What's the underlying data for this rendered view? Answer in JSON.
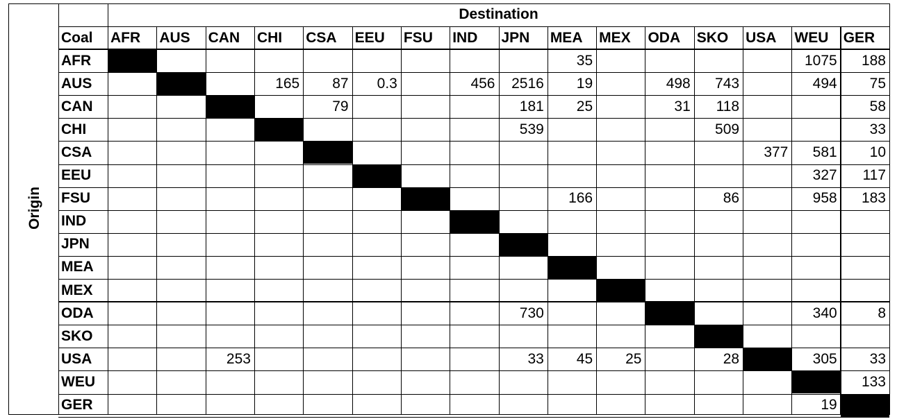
{
  "table": {
    "destination_title": "Destination",
    "origin_title": "Origin",
    "corner_label": "Coal",
    "columns": [
      "AFR",
      "AUS",
      "CAN",
      "CHI",
      "CSA",
      "EEU",
      "FSU",
      "IND",
      "JPN",
      "MEA",
      "MEX",
      "ODA",
      "SKO",
      "USA",
      "WEU",
      "GER"
    ],
    "rows": [
      {
        "label": "AFR",
        "values": [
          "",
          "",
          "",
          "",
          "",
          "",
          "",
          "",
          "",
          "35",
          "",
          "",
          "",
          "",
          "1075",
          "188"
        ]
      },
      {
        "label": "AUS",
        "values": [
          "",
          "",
          "",
          "165",
          "87",
          "0.3",
          "",
          "456",
          "2516",
          "19",
          "",
          "498",
          "743",
          "",
          "494",
          "75"
        ]
      },
      {
        "label": "CAN",
        "values": [
          "",
          "",
          "",
          "",
          "79",
          "",
          "",
          "",
          "181",
          "25",
          "",
          "31",
          "118",
          "",
          "",
          "58"
        ]
      },
      {
        "label": "CHI",
        "values": [
          "",
          "",
          "",
          "",
          "",
          "",
          "",
          "",
          "539",
          "",
          "",
          "",
          "509",
          "",
          "",
          "33"
        ]
      },
      {
        "label": "CSA",
        "values": [
          "",
          "",
          "",
          "",
          "",
          "",
          "",
          "",
          "",
          "",
          "",
          "",
          "",
          "377",
          "581",
          "10"
        ]
      },
      {
        "label": "EEU",
        "values": [
          "",
          "",
          "",
          "",
          "",
          "",
          "",
          "",
          "",
          "",
          "",
          "",
          "",
          "",
          "327",
          "117"
        ]
      },
      {
        "label": "FSU",
        "values": [
          "",
          "",
          "",
          "",
          "",
          "",
          "",
          "",
          "",
          "166",
          "",
          "",
          "86",
          "",
          "958",
          "183"
        ]
      },
      {
        "label": "IND",
        "values": [
          "",
          "",
          "",
          "",
          "",
          "",
          "",
          "",
          "",
          "",
          "",
          "",
          "",
          "",
          "",
          ""
        ]
      },
      {
        "label": "JPN",
        "values": [
          "",
          "",
          "",
          "",
          "",
          "",
          "",
          "",
          "",
          "",
          "",
          "",
          "",
          "",
          "",
          ""
        ]
      },
      {
        "label": "MEA",
        "values": [
          "",
          "",
          "",
          "",
          "",
          "",
          "",
          "",
          "",
          "",
          "",
          "",
          "",
          "",
          "",
          ""
        ]
      },
      {
        "label": "MEX",
        "values": [
          "",
          "",
          "",
          "",
          "",
          "",
          "",
          "",
          "",
          "",
          "",
          "",
          "",
          "",
          "",
          ""
        ]
      },
      {
        "label": "ODA",
        "values": [
          "",
          "",
          "",
          "",
          "",
          "",
          "",
          "",
          "730",
          "",
          "",
          "",
          "",
          "",
          "340",
          "8"
        ]
      },
      {
        "label": "SKO",
        "values": [
          "",
          "",
          "",
          "",
          "",
          "",
          "",
          "",
          "",
          "",
          "",
          "",
          "",
          "",
          "",
          ""
        ]
      },
      {
        "label": "USA",
        "values": [
          "",
          "",
          "253",
          "",
          "",
          "",
          "",
          "",
          "33",
          "45",
          "25",
          "",
          "28",
          "",
          "305",
          "33"
        ]
      },
      {
        "label": "WEU",
        "values": [
          "",
          "",
          "",
          "",
          "",
          "",
          "",
          "",
          "",
          "",
          "",
          "",
          "",
          "",
          "",
          "133"
        ]
      },
      {
        "label": "GER",
        "values": [
          "",
          "",
          "",
          "",
          "",
          "",
          "",
          "",
          "",
          "",
          "",
          "",
          "",
          "",
          "19",
          ""
        ]
      }
    ]
  }
}
